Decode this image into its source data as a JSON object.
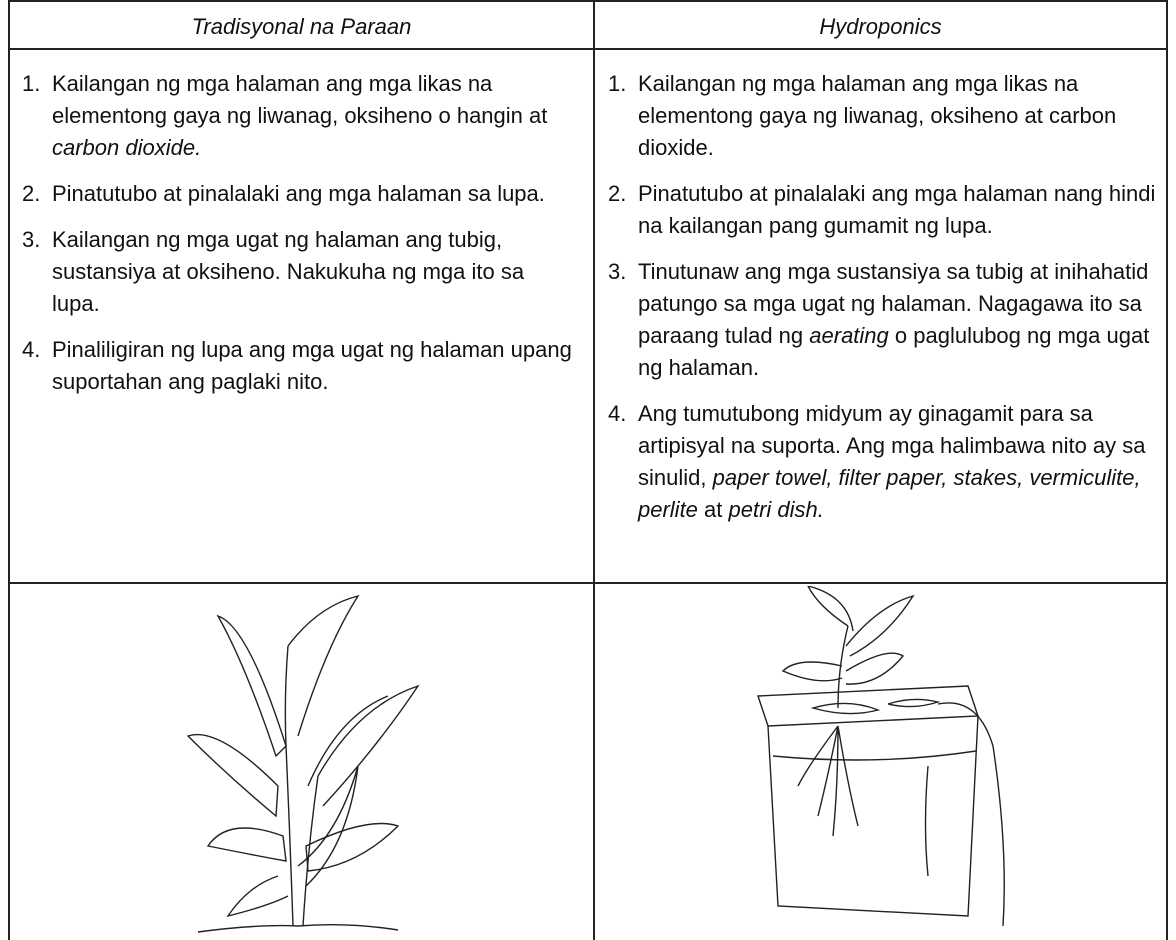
{
  "columns": [
    {
      "header": "Tradisyonal na Paraan",
      "items": [
        {
          "number": "1.",
          "runs": [
            "Kailangan ng mga halaman ang mga likas na elementong gaya ng liwanag, oksiheno o hangin at ",
            {
              "text": "carbon dioxide.",
              "italic": true
            }
          ]
        },
        {
          "number": "2.",
          "runs": [
            "Pinatutubo at pinalalaki ang mga halaman sa lupa."
          ]
        },
        {
          "number": "3.",
          "runs": [
            "Kailangan ng mga ugat ng halaman ang tubig, sustansiya at oksiheno. Nakukuha ng mga ito sa lupa."
          ]
        },
        {
          "number": "4.",
          "runs": [
            "Pinaliligiran ng lupa ang mga ugat ng halaman upang suportahan ang paglaki nito."
          ]
        }
      ]
    },
    {
      "header": "Hydroponics",
      "items": [
        {
          "number": "1.",
          "runs": [
            "Kailangan ng mga halaman ang mga likas na elementong gaya ng liwanag, oksiheno at carbon dioxide."
          ]
        },
        {
          "number": "2.",
          "runs": [
            "Pinatutubo at pinalalaki ang mga halaman nang hindi na kailangan pang gumamit ng lupa."
          ]
        },
        {
          "number": "3.",
          "runs": [
            "Tinutunaw ang mga sustansiya sa tubig at inihahatid patungo sa mga ugat ng halaman. Nagagawa ito sa paraang tulad ng ",
            {
              "text": "aerating",
              "italic": true
            },
            " o paglulubog ng mga ugat ng halaman."
          ]
        },
        {
          "number": "4.",
          "runs": [
            "Ang tumutubong midyum ay ginagamit para sa artipisyal na suporta. Ang mga halimbawa nito ay sa sinulid, ",
            {
              "text": "paper towel, filter paper, stakes, vermiculite, perlite",
              "italic": true
            },
            " at ",
            {
              "text": "petri dish.",
              "italic": true
            }
          ]
        }
      ]
    }
  ]
}
